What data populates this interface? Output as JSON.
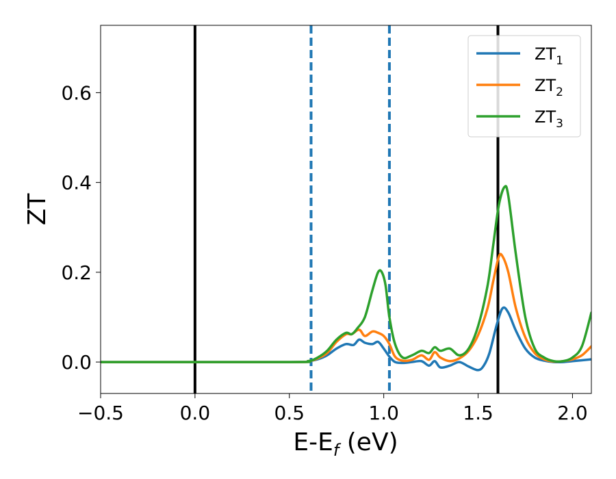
{
  "chart_data": {
    "type": "line",
    "xlabel": {
      "main": "E-E",
      "sub": "f",
      "rest": " (eV)"
    },
    "ylabel": "ZT",
    "xlim": [
      -0.5,
      2.1
    ],
    "ylim": [
      -0.07,
      0.75
    ],
    "xticks": [
      -0.5,
      0.0,
      0.5,
      1.0,
      1.5,
      2.0
    ],
    "xtick_labels": [
      "−0.5",
      "0.0",
      "0.5",
      "1.0",
      "1.5",
      "2.0"
    ],
    "yticks": [
      0.0,
      0.2,
      0.4,
      0.6
    ],
    "ytick_labels": [
      "0.0",
      "0.2",
      "0.4",
      "0.6"
    ],
    "grid": false,
    "legend_position": "top-right",
    "vlines": [
      {
        "x": 0.0,
        "style": "solid",
        "color": "#000000"
      },
      {
        "x": 0.615,
        "style": "dashed",
        "color": "#1f77b4"
      },
      {
        "x": 1.03,
        "style": "dashed",
        "color": "#1f77b4"
      },
      {
        "x": 1.605,
        "style": "solid",
        "color": "#000000"
      }
    ],
    "series": [
      {
        "name": "ZT",
        "name_sub": "1",
        "color": "#1f77b4",
        "x": [
          -0.5,
          0.5,
          0.6,
          0.65,
          0.7,
          0.75,
          0.8,
          0.84,
          0.87,
          0.9,
          0.94,
          0.97,
          1.0,
          1.03,
          1.06,
          1.1,
          1.15,
          1.2,
          1.24,
          1.27,
          1.3,
          1.35,
          1.4,
          1.45,
          1.5,
          1.53,
          1.56,
          1.6,
          1.63,
          1.66,
          1.7,
          1.75,
          1.8,
          1.85,
          1.9,
          1.95,
          2.0,
          2.05,
          2.1
        ],
        "y": [
          0.0,
          0.0,
          0.002,
          0.006,
          0.015,
          0.03,
          0.04,
          0.038,
          0.05,
          0.043,
          0.04,
          0.045,
          0.03,
          0.012,
          0.0,
          -0.002,
          0.0,
          0.002,
          -0.008,
          0.002,
          -0.012,
          -0.008,
          0.0,
          -0.01,
          -0.018,
          -0.008,
          0.02,
          0.085,
          0.12,
          0.11,
          0.07,
          0.03,
          0.01,
          0.003,
          0.0,
          0.0,
          0.002,
          0.004,
          0.006
        ]
      },
      {
        "name": "ZT",
        "name_sub": "2",
        "color": "#ff7f0e",
        "x": [
          -0.5,
          0.5,
          0.6,
          0.65,
          0.7,
          0.75,
          0.8,
          0.83,
          0.87,
          0.9,
          0.94,
          0.97,
          1.0,
          1.03,
          1.06,
          1.1,
          1.15,
          1.2,
          1.24,
          1.27,
          1.3,
          1.35,
          1.4,
          1.45,
          1.5,
          1.55,
          1.58,
          1.61,
          1.63,
          1.66,
          1.7,
          1.75,
          1.8,
          1.85,
          1.9,
          1.95,
          2.0,
          2.05,
          2.1
        ],
        "y": [
          0.0,
          0.0,
          0.002,
          0.008,
          0.02,
          0.045,
          0.062,
          0.062,
          0.072,
          0.058,
          0.068,
          0.065,
          0.058,
          0.04,
          0.012,
          0.003,
          0.005,
          0.015,
          0.005,
          0.022,
          0.01,
          0.002,
          0.008,
          0.025,
          0.06,
          0.12,
          0.18,
          0.235,
          0.235,
          0.2,
          0.12,
          0.055,
          0.02,
          0.006,
          0.001,
          0.002,
          0.006,
          0.015,
          0.035
        ]
      },
      {
        "name": "ZT",
        "name_sub": "3",
        "color": "#2ca02c",
        "x": [
          -0.5,
          0.5,
          0.6,
          0.65,
          0.7,
          0.75,
          0.8,
          0.83,
          0.86,
          0.9,
          0.94,
          0.97,
          0.99,
          1.01,
          1.03,
          1.06,
          1.1,
          1.15,
          1.2,
          1.24,
          1.27,
          1.3,
          1.35,
          1.4,
          1.45,
          1.5,
          1.55,
          1.58,
          1.61,
          1.64,
          1.66,
          1.7,
          1.75,
          1.8,
          1.85,
          1.9,
          1.95,
          2.0,
          2.05,
          2.1
        ],
        "y": [
          0.0,
          0.0,
          0.002,
          0.01,
          0.025,
          0.05,
          0.065,
          0.062,
          0.075,
          0.1,
          0.16,
          0.2,
          0.2,
          0.17,
          0.1,
          0.04,
          0.01,
          0.015,
          0.025,
          0.02,
          0.033,
          0.025,
          0.03,
          0.015,
          0.03,
          0.08,
          0.17,
          0.26,
          0.35,
          0.39,
          0.37,
          0.24,
          0.1,
          0.03,
          0.01,
          0.002,
          0.002,
          0.01,
          0.035,
          0.11
        ]
      }
    ]
  }
}
